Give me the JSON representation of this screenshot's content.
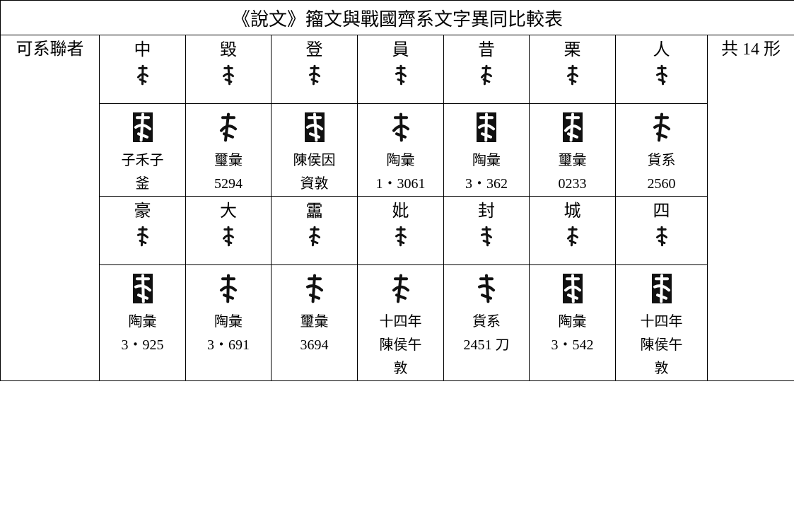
{
  "title": "《說文》籀文與戰國齊系文字異同比較表",
  "left_label": "可系聯者",
  "right_label": "共 14 形",
  "groups": [
    {
      "chars": [
        "中",
        "毀",
        "登",
        "員",
        "昔",
        "栗",
        "人"
      ],
      "sources": [
        [
          "子禾子",
          "釜"
        ],
        [
          "璽彙",
          "5294"
        ],
        [
          "陳侯因",
          "資敦"
        ],
        [
          "陶彙",
          "1・3061"
        ],
        [
          "陶彙",
          "3・362"
        ],
        [
          "璽彙",
          "0233"
        ],
        [
          "貨系",
          "2560"
        ]
      ]
    },
    {
      "chars": [
        "豪",
        "大",
        "靁",
        "妣",
        "封",
        "城",
        "四"
      ],
      "sources": [
        [
          "陶彙",
          "3・925"
        ],
        [
          "陶彙",
          "3・691"
        ],
        [
          "璽彙",
          "3694"
        ],
        [
          "十四年",
          "陳侯午",
          "敦"
        ],
        [
          "貨系",
          "2451 刀"
        ],
        [
          "陶彙",
          "3・542"
        ],
        [
          "十四年",
          "陳侯午",
          "敦"
        ]
      ]
    }
  ]
}
